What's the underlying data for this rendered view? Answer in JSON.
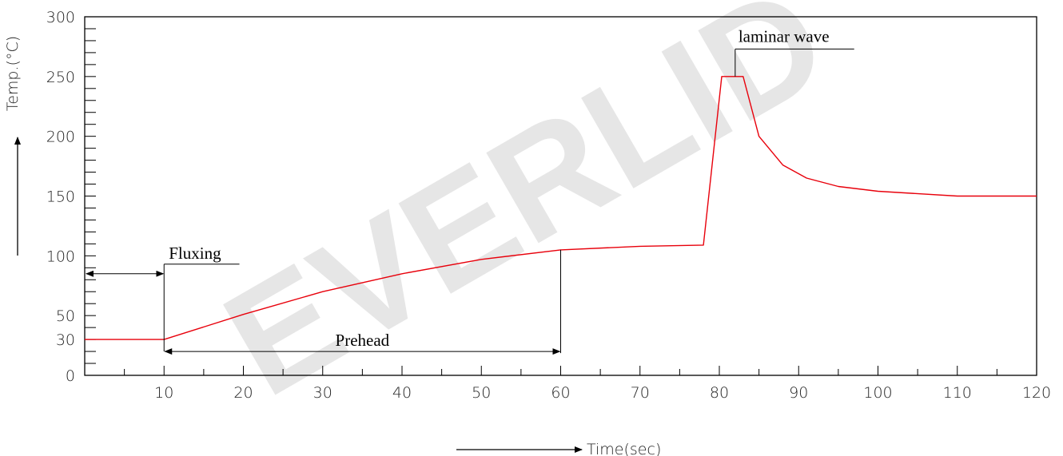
{
  "chart_data": {
    "type": "line",
    "watermark": "EVERLID",
    "xlabel": "Time(sec)",
    "ylabel": "Temp.(°C)",
    "xlim": [
      0,
      120
    ],
    "ylim": [
      0,
      300
    ],
    "x_ticks": [
      10,
      20,
      30,
      40,
      50,
      60,
      70,
      80,
      90,
      100,
      110,
      120
    ],
    "x_tick_labels": [
      "10",
      "20",
      "30",
      "40",
      "50",
      "60",
      "70",
      "80",
      "90",
      "100",
      "110",
      "120"
    ],
    "x_minor_step": 5,
    "y_ticks": [
      0,
      30,
      50,
      100,
      150,
      200,
      250,
      300
    ],
    "y_tick_labels": [
      "0",
      "30",
      "50",
      "100",
      "150",
      "200",
      "250",
      "300"
    ],
    "y_minor_step": 10,
    "grid": false,
    "colors": {
      "series": "#e8000b",
      "axis": "#000000",
      "watermark": "#e6e6e6"
    },
    "series": [
      {
        "x": [
          0,
          10,
          20,
          30,
          40,
          50,
          60,
          70,
          78,
          80.3,
          83,
          85,
          88,
          91,
          95,
          100,
          110,
          120
        ],
        "y": [
          30,
          30,
          51,
          70,
          85,
          97,
          105,
          108,
          109,
          250,
          250,
          200,
          176,
          165,
          158,
          154,
          150,
          150
        ]
      }
    ],
    "annotations": [
      {
        "text": "Fluxing",
        "x_start": 0,
        "x_end": 10,
        "y": 85
      },
      {
        "text": "Prehead",
        "x_start": 10,
        "x_end": 60,
        "y": 20
      },
      {
        "text": "laminar wave",
        "x": 82,
        "y": 250
      }
    ]
  }
}
